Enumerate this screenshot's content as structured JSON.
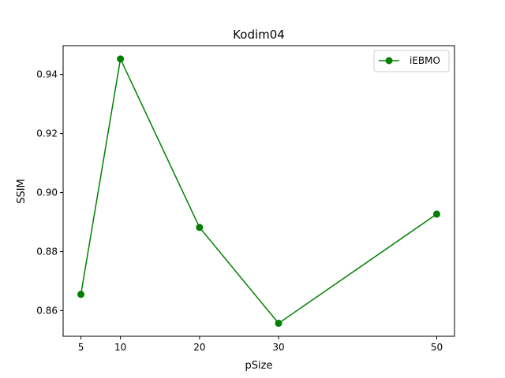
{
  "chart_data": {
    "type": "line",
    "title": "Kodim04",
    "xlabel": "pSize",
    "ylabel": "SSIM",
    "x": [
      5,
      10,
      20,
      30,
      50
    ],
    "xticks": [
      "5",
      "10",
      "20",
      "30",
      "50"
    ],
    "yticks": [
      "0.86",
      "0.88",
      "0.90",
      "0.92",
      "0.94"
    ],
    "series": [
      {
        "name": "iEBMO",
        "values": [
          0.8655,
          0.9453,
          0.8882,
          0.8557,
          0.8927
        ],
        "color": "#008000",
        "marker": "circle"
      }
    ],
    "xlim": [
      2.75,
      52.25
    ],
    "ylim": [
      0.8513,
      0.9498
    ],
    "grid": false,
    "legend": "top-right"
  }
}
